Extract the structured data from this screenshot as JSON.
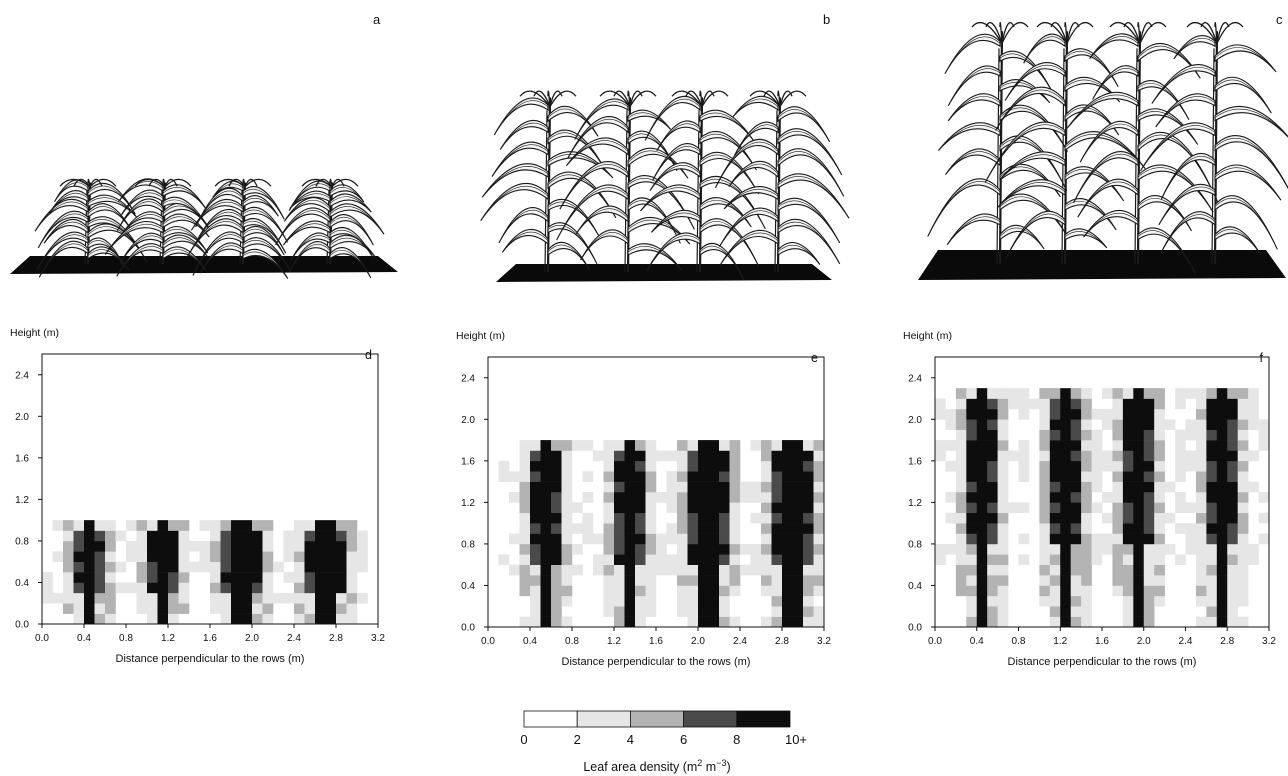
{
  "panel_letters": {
    "a": "a",
    "b": "b",
    "c": "c",
    "d": "d",
    "e": "e",
    "f": "f"
  },
  "colors": {
    "level_1": "#ffffff",
    "level_2": "#e6e6e6",
    "level_3": "#b3b3b3",
    "level_4": "#4a4a4a",
    "level_5": "#0d0d0d",
    "ground": "#0a0a0a",
    "leaf": "#1a1a1a"
  },
  "plant_renders": [
    {
      "panel": "a",
      "plants": 4,
      "relative_height": 0.35
    },
    {
      "panel": "b",
      "plants": 4,
      "relative_height": 0.75
    },
    {
      "panel": "c",
      "plants": 4,
      "relative_height": 1.0
    }
  ],
  "legend": {
    "ticks": [
      "0",
      "2",
      "4",
      "6",
      "8",
      "10+"
    ],
    "title_prefix": "Leaf area density (m",
    "sup1": "2",
    "mid": " m",
    "sup2": "−3",
    "title_suffix": ")"
  },
  "chart_data": [
    {
      "type": "heatmap",
      "panel": "d",
      "ylabel": "Height (m)",
      "xlabel": "Distance perpendicular to the rows (m)",
      "xlim": [
        0.0,
        3.2
      ],
      "ylim": [
        0.0,
        2.6
      ],
      "xticks": [
        "0.0",
        "0.4",
        "0.8",
        "1.2",
        "1.6",
        "2.0",
        "2.4",
        "2.8",
        "3.2"
      ],
      "yticks": [
        "0.0",
        "0.4",
        "0.8",
        "1.2",
        "1.6",
        "2.0",
        "2.4"
      ],
      "row_positions": [
        0.45,
        1.15,
        1.9,
        2.7
      ],
      "canopy_height": 0.9,
      "cell_size": 0.1,
      "scale": [
        "0-2",
        "2-4",
        "4-6",
        "6-8",
        "8-10+"
      ]
    },
    {
      "type": "heatmap",
      "panel": "e",
      "ylabel": "Height (m)",
      "xlabel": "Distance perpendicular to the rows (m)",
      "xlim": [
        0.0,
        3.2
      ],
      "ylim": [
        0.0,
        2.6
      ],
      "xticks": [
        "0.0",
        "0.4",
        "0.8",
        "1.2",
        "1.6",
        "2.0",
        "2.4",
        "2.8",
        "3.2"
      ],
      "yticks": [
        "0.0",
        "0.4",
        "0.8",
        "1.2",
        "1.6",
        "2.0",
        "2.4"
      ],
      "row_positions": [
        0.55,
        1.35,
        2.1,
        2.9
      ],
      "canopy_height": 1.8,
      "cell_size": 0.1,
      "scale": [
        "0-2",
        "2-4",
        "4-6",
        "6-8",
        "8-10+"
      ]
    },
    {
      "type": "heatmap",
      "panel": "f",
      "ylabel": "Height (m)",
      "xlabel": "Distance perpendicular to the rows (m)",
      "xlim": [
        0.0,
        3.2
      ],
      "ylim": [
        0.0,
        2.6
      ],
      "xticks": [
        "0.0",
        "0.4",
        "0.8",
        "1.2",
        "1.6",
        "2.0",
        "2.4",
        "2.8",
        "3.2"
      ],
      "yticks": [
        "0.0",
        "0.4",
        "0.8",
        "1.2",
        "1.6",
        "2.0",
        "2.4"
      ],
      "row_positions": [
        0.45,
        1.25,
        1.95,
        2.75
      ],
      "canopy_height": 2.3,
      "cell_size": 0.1,
      "scale": [
        "0-2",
        "2-4",
        "4-6",
        "6-8",
        "8-10+"
      ]
    }
  ]
}
